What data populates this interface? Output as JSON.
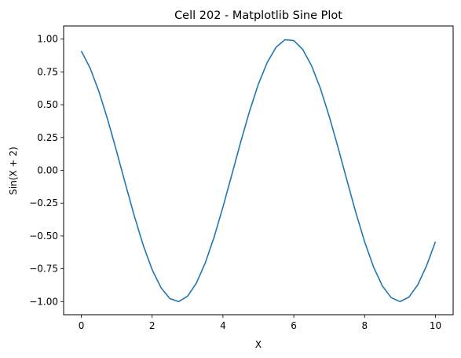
{
  "chart_data": {
    "type": "line",
    "title": "Cell 202 - Matplotlib Sine Plot",
    "xlabel": "X",
    "ylabel": "Sin(X + 2)",
    "xlim": [
      -0.5,
      10.5
    ],
    "ylim": [
      -1.1,
      1.1
    ],
    "x_ticks": [
      0,
      2,
      4,
      6,
      8,
      10
    ],
    "x_tick_labels": [
      "0",
      "2",
      "4",
      "6",
      "8",
      "10"
    ],
    "y_ticks": [
      -1.0,
      -0.75,
      -0.5,
      -0.25,
      0.0,
      0.25,
      0.5,
      0.75,
      1.0
    ],
    "y_tick_labels": [
      "−1.00",
      "−0.75",
      "−0.50",
      "−0.25",
      "0.00",
      "0.25",
      "0.50",
      "0.75",
      "1.00"
    ],
    "grid": false,
    "series": [
      {
        "color": "#1f77b4",
        "x": [
          0,
          0.25,
          0.5,
          0.75,
          1,
          1.25,
          1.5,
          1.75,
          2,
          2.25,
          2.5,
          2.75,
          3,
          3.25,
          3.5,
          3.75,
          4,
          4.25,
          4.5,
          4.75,
          5,
          5.25,
          5.5,
          5.75,
          6,
          6.25,
          6.5,
          6.75,
          7,
          7.25,
          7.5,
          7.75,
          8,
          8.25,
          8.5,
          8.75,
          9,
          9.25,
          9.5,
          9.75,
          10
        ],
        "values": [
          0.909,
          0.778,
          0.598,
          0.382,
          0.141,
          -0.108,
          -0.351,
          -0.572,
          -0.757,
          -0.894,
          -0.977,
          -1.0,
          -0.959,
          -0.859,
          -0.706,
          -0.508,
          -0.279,
          -0.033,
          0.215,
          0.45,
          0.657,
          0.822,
          0.938,
          0.995,
          0.989,
          0.922,
          0.798,
          0.625,
          0.412,
          0.174,
          -0.075,
          -0.32,
          -0.544,
          -0.735,
          -0.88,
          -0.97,
          -1.0,
          -0.966,
          -0.873,
          -0.726,
          -0.544
        ]
      }
    ]
  }
}
